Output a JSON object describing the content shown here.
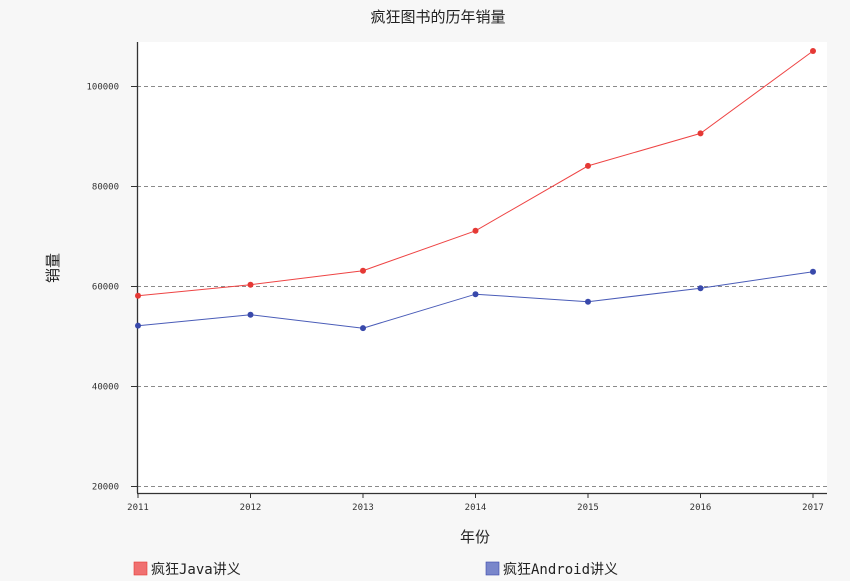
{
  "chart_data": {
    "type": "line",
    "title": "疯狂图书的历年销量",
    "xlabel": "年份",
    "ylabel": "销量",
    "categories": [
      "2011",
      "2012",
      "2013",
      "2014",
      "2015",
      "2016",
      "2017"
    ],
    "y_ticks": [
      20000,
      40000,
      60000,
      80000,
      100000
    ],
    "y_tick_labels": [
      "20000",
      "40000",
      "60000",
      "80000",
      "100000"
    ],
    "ylim": [
      18500,
      108800
    ],
    "grid": "horizontal dashed",
    "legend_position": "bottom",
    "series": [
      {
        "name": "疯狂Java讲义",
        "color": "#ee4444",
        "marker_color": "#e53935",
        "legend_color": "#f07070",
        "values": [
          58000,
          60200,
          63000,
          71000,
          84000,
          90500,
          107000
        ]
      },
      {
        "name": "疯狂Android讲义",
        "color": "#4a5cb8",
        "marker_color": "#3949ab",
        "legend_color": "#7986cb",
        "values": [
          52000,
          54200,
          51500,
          58300,
          56800,
          59500,
          62800
        ]
      }
    ]
  }
}
